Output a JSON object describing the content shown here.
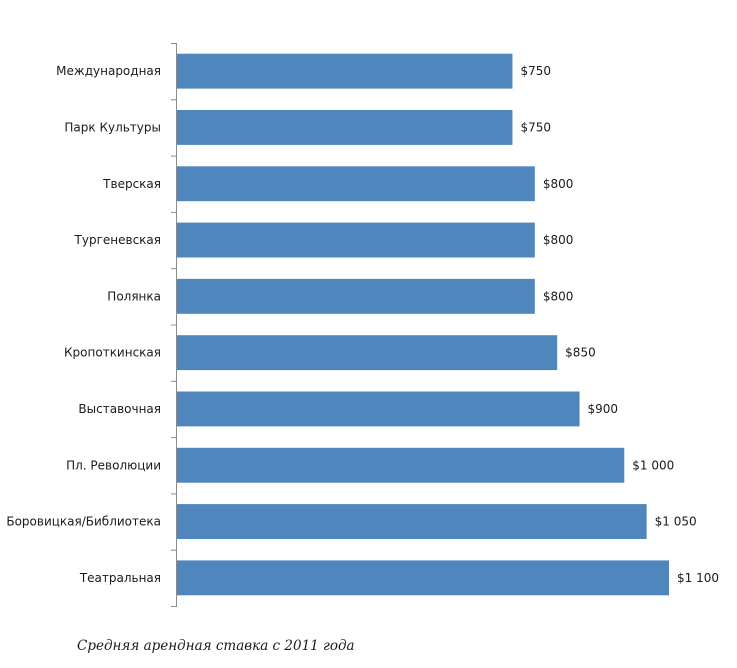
{
  "caption": "Средняя арендная ставка с 2011 года",
  "chart_data": {
    "type": "bar",
    "orientation": "horizontal",
    "categories": [
      "Международная",
      "Парк Культуры",
      "Тверская",
      "Тургеневская",
      "Полянка",
      "Кропоткинская",
      "Выставочная",
      "Пл. Революции",
      "Боровицкая/Библиотека",
      "Театральная"
    ],
    "values": [
      750,
      750,
      800,
      800,
      800,
      850,
      900,
      1000,
      1050,
      1100
    ],
    "data_labels": [
      "$750",
      "$750",
      "$800",
      "$800",
      "$800",
      "$850",
      "$900",
      "$1 000",
      "$1 050",
      "$1 100"
    ],
    "title": "",
    "xlabel": "",
    "ylabel": "",
    "xlim": [
      0,
      1100
    ],
    "bar_color": "#4f86bd",
    "grid": false,
    "legend": "none"
  }
}
